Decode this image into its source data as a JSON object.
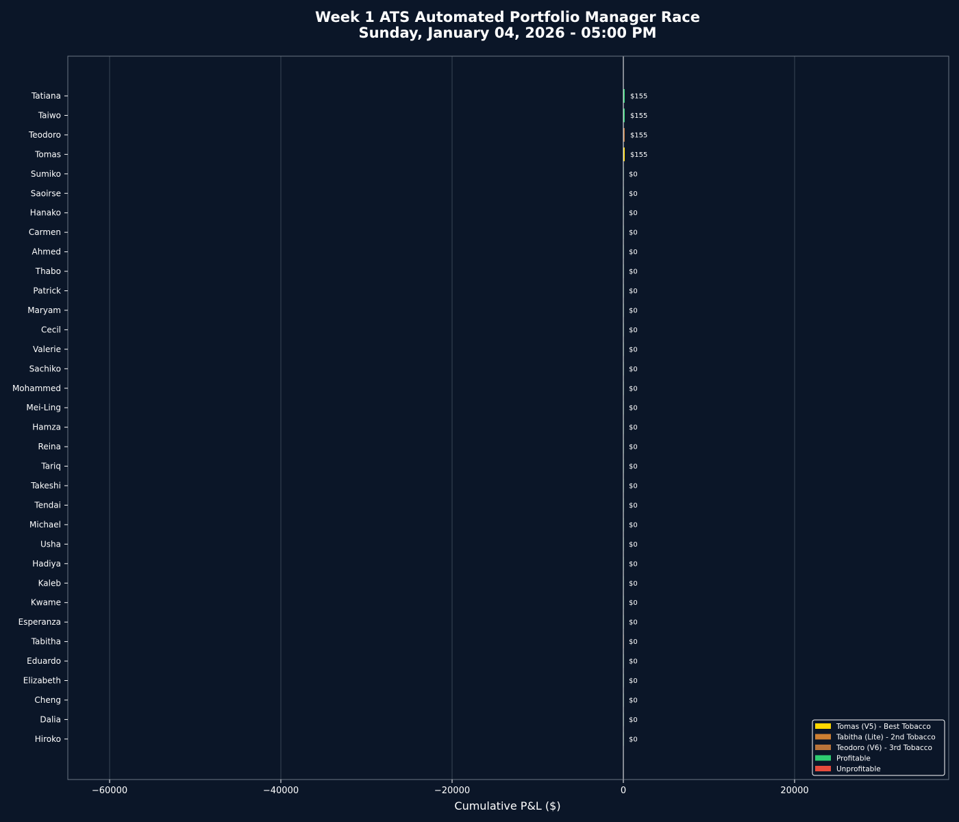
{
  "chart_data": {
    "type": "bar",
    "orientation": "horizontal",
    "title": "Week 1 ATS Automated Portfolio Manager Race",
    "subtitle": "Sunday, January 04, 2026 - 05:00 PM",
    "xlabel": "Cumulative P&L ($)",
    "xlim": [
      -65000,
      38000
    ],
    "xticks": [
      -60000,
      -40000,
      -20000,
      0,
      20000
    ],
    "xtick_labels": [
      "−60000",
      "−40000",
      "−20000",
      "0",
      "20000"
    ],
    "grid": true,
    "legend_position": "bottom-right",
    "categories": [
      "Tatiana",
      "Taiwo",
      "Teodoro",
      "Tomas",
      "Sumiko",
      "Saoirse",
      "Hanako",
      "Carmen",
      "Ahmed",
      "Thabo",
      "Patrick",
      "Maryam",
      "Cecil",
      "Valerie",
      "Sachiko",
      "Mohammed",
      "Mei-Ling",
      "Hamza",
      "Reina",
      "Tariq",
      "Takeshi",
      "Tendai",
      "Michael",
      "Usha",
      "Hadiya",
      "Kaleb",
      "Kwame",
      "Esperanza",
      "Tabitha",
      "Eduardo",
      "Elizabeth",
      "Cheng",
      "Dalia",
      "Hiroko"
    ],
    "values": [
      155,
      155,
      155,
      155,
      0,
      0,
      0,
      0,
      0,
      0,
      0,
      0,
      0,
      0,
      0,
      0,
      0,
      0,
      0,
      0,
      0,
      0,
      0,
      0,
      0,
      0,
      0,
      0,
      0,
      0,
      0,
      0,
      0,
      0
    ],
    "value_labels": [
      "$155",
      "$155",
      "$155",
      "$155",
      "$0",
      "$0",
      "$0",
      "$0",
      "$0",
      "$0",
      "$0",
      "$0",
      "$0",
      "$0",
      "$0",
      "$0",
      "$0",
      "$0",
      "$0",
      "$0",
      "$0",
      "$0",
      "$0",
      "$0",
      "$0",
      "$0",
      "$0",
      "$0",
      "$0",
      "$0",
      "$0",
      "$0",
      "$0",
      "$0"
    ],
    "bar_colors": [
      "#2ecc71",
      "#2ecc71",
      "#b8733a",
      "#ffd700",
      "#2ecc71",
      "#2ecc71",
      "#2ecc71",
      "#2ecc71",
      "#2ecc71",
      "#2ecc71",
      "#2ecc71",
      "#2ecc71",
      "#2ecc71",
      "#2ecc71",
      "#2ecc71",
      "#2ecc71",
      "#2ecc71",
      "#2ecc71",
      "#2ecc71",
      "#2ecc71",
      "#2ecc71",
      "#2ecc71",
      "#2ecc71",
      "#2ecc71",
      "#2ecc71",
      "#2ecc71",
      "#2ecc71",
      "#2ecc71",
      "#cd7f32",
      "#2ecc71",
      "#2ecc71",
      "#2ecc71",
      "#2ecc71",
      "#2ecc71"
    ],
    "legend": [
      {
        "label": "Tomas (V5) - Best Tobacco",
        "color": "#ffd700"
      },
      {
        "label": "Tabitha (Lite) - 2nd Tobacco",
        "color": "#cd7f32"
      },
      {
        "label": "Teodoro (V6) - 3rd Tobacco",
        "color": "#b8733a"
      },
      {
        "label": "Profitable",
        "color": "#2ecc71"
      },
      {
        "label": "Unprofitable",
        "color": "#e74c3c"
      }
    ],
    "colors": {
      "background": "#0b1628",
      "grid": "#3a4656",
      "zero_line": "#ffffff",
      "text": "#ffffff"
    }
  }
}
